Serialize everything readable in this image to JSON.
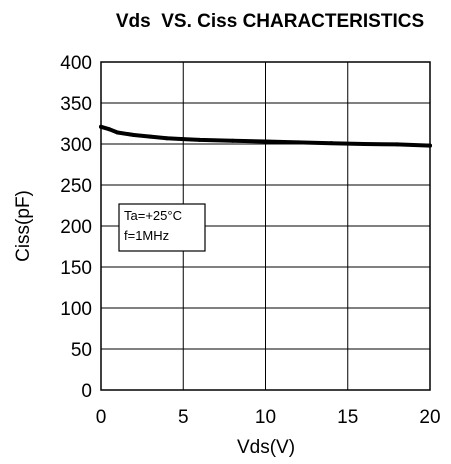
{
  "chart_data": {
    "type": "line",
    "title": "Vds  VS. Ciss CHARACTERISTICS",
    "xlabel": "Vds(V)",
    "ylabel": "Ciss(pF)",
    "xlim": [
      0,
      20
    ],
    "ylim": [
      0,
      400
    ],
    "xticks": [
      0,
      5,
      10,
      15,
      20
    ],
    "yticks": [
      0,
      50,
      100,
      150,
      200,
      250,
      300,
      350,
      400
    ],
    "grid": true,
    "annotation": {
      "lines": [
        "Ta=+25°C",
        "f=1MHz"
      ]
    },
    "series": [
      {
        "color": "#000000",
        "x": [
          0,
          0.5,
          1,
          2,
          3,
          4,
          5,
          6,
          8,
          10,
          12,
          14,
          16,
          18,
          20
        ],
        "y": [
          321,
          318,
          314,
          311,
          309,
          307,
          306,
          305,
          304,
          303,
          302,
          301,
          300,
          299.5,
          298
        ]
      }
    ]
  }
}
